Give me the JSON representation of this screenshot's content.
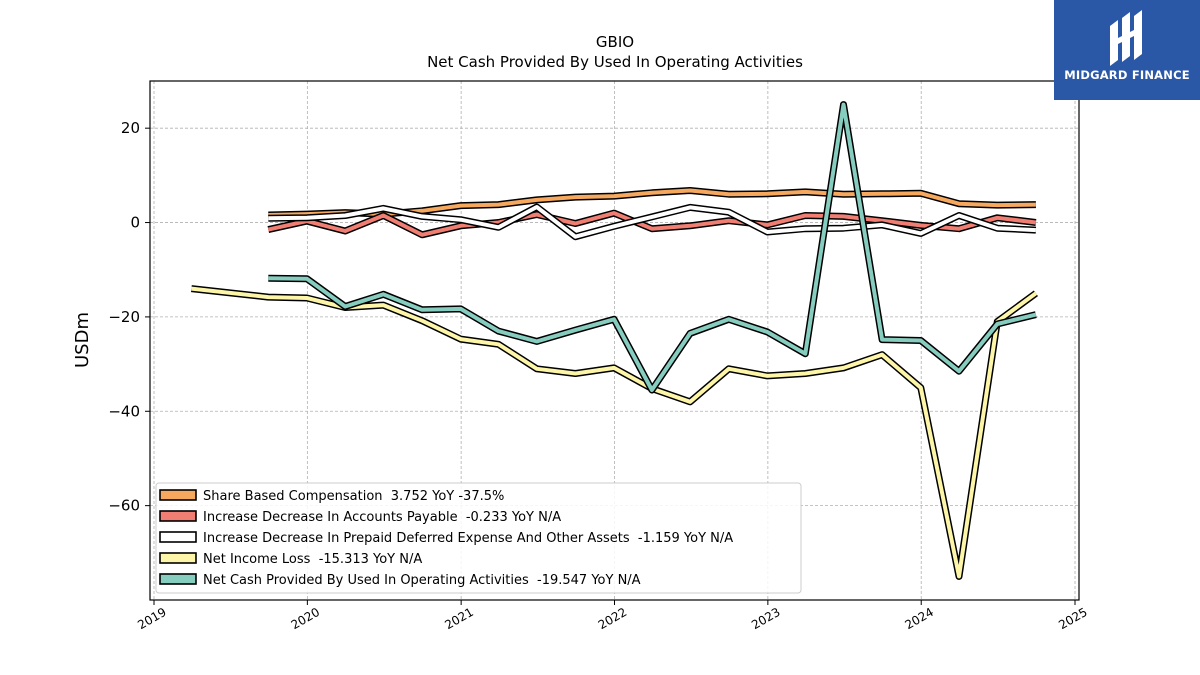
{
  "header": {
    "ticker": "GBIO",
    "subtitle": "Net Cash Provided By Used In Operating Activities"
  },
  "logo": {
    "text": "MIDGARD FINANCE",
    "bg_color": "#2b57a7"
  },
  "chart_data": {
    "type": "line",
    "title": "GBIO",
    "subtitle": "Net Cash Provided By Used In Operating Activities",
    "ylabel": "USDm",
    "xlabel": "",
    "x_is_date": true,
    "xlim": [
      "2019-01-01",
      "2025-01-01"
    ],
    "ylim": [
      -80,
      30
    ],
    "x_ticks": [
      "2019",
      "2020",
      "2021",
      "2022",
      "2023",
      "2024",
      "2025"
    ],
    "y_ticks": [
      -60,
      -40,
      -20,
      0,
      20
    ],
    "y_tick_labels": [
      "−60",
      "−40",
      "−20",
      "0",
      "20"
    ],
    "grid": true,
    "legend_position": "lower-left",
    "series": [
      {
        "name": "Share Based Compensation",
        "legend_label": "Share Based Compensation  3.752 YoY -37.5%",
        "color": "#f6a85e",
        "x": [
          "2019-09-30",
          "2019-12-31",
          "2020-03-31",
          "2020-06-30",
          "2020-09-30",
          "2020-12-31",
          "2021-03-31",
          "2021-06-30",
          "2021-09-30",
          "2021-12-31",
          "2022-03-31",
          "2022-06-30",
          "2022-09-30",
          "2022-12-31",
          "2023-03-31",
          "2023-06-30",
          "2023-09-30",
          "2023-12-31",
          "2024-03-31",
          "2024-06-30",
          "2024-09-30"
        ],
        "y": [
          1.6,
          1.8,
          2.1,
          1.8,
          2.5,
          3.6,
          3.8,
          4.8,
          5.4,
          5.6,
          6.3,
          6.8,
          6.0,
          6.1,
          6.5,
          6.0,
          6.1,
          6.2,
          4.0,
          3.7,
          3.8
        ]
      },
      {
        "name": "Increase Decrease In Accounts Payable",
        "legend_label": "Increase Decrease In Accounts Payable  -0.233 YoY N/A",
        "color": "#f07e72",
        "x": [
          "2019-09-30",
          "2019-12-31",
          "2020-03-31",
          "2020-06-30",
          "2020-09-30",
          "2020-12-31",
          "2021-03-31",
          "2021-06-30",
          "2021-09-30",
          "2021-12-31",
          "2022-03-31",
          "2022-06-30",
          "2022-09-30",
          "2022-12-31",
          "2023-03-31",
          "2023-06-30",
          "2023-09-30",
          "2023-12-31",
          "2024-03-31",
          "2024-06-30",
          "2024-09-30"
        ],
        "y": [
          -1.5,
          0.3,
          -1.8,
          1.5,
          -2.6,
          -0.7,
          0.0,
          1.7,
          -0.2,
          2.0,
          -1.3,
          -0.7,
          0.4,
          -0.5,
          1.5,
          1.3,
          0.4,
          -0.6,
          -1.3,
          1.0,
          0.0
        ]
      },
      {
        "name": "Increase Decrease In Prepaid Deferred Expense And Other Assets",
        "legend_label": "Increase Decrease In Prepaid Deferred Expense And Other Assets  -1.159 YoY N/A",
        "color": "#ffffff",
        "x": [
          "2019-09-30",
          "2019-12-31",
          "2020-03-31",
          "2020-06-30",
          "2020-09-30",
          "2020-12-31",
          "2021-03-31",
          "2021-06-30",
          "2021-09-30",
          "2021-12-31",
          "2022-03-31",
          "2022-06-30",
          "2022-09-30",
          "2022-12-31",
          "2023-03-31",
          "2023-06-30",
          "2023-09-30",
          "2023-12-31",
          "2024-03-31",
          "2024-06-30",
          "2024-09-30"
        ],
        "y": [
          0.9,
          1.0,
          1.5,
          3.0,
          1.3,
          0.6,
          -1.0,
          3.3,
          -3.0,
          -0.8,
          1.2,
          3.2,
          2.2,
          -2.0,
          -1.3,
          -1.2,
          -0.5,
          -2.3,
          1.5,
          -1.2,
          -1.6
        ]
      },
      {
        "name": "Net Income Loss",
        "legend_label": "Net Income Loss  -15.313 YoY N/A",
        "color": "#fdf6a8",
        "x": [
          "2019-03-31",
          "2019-09-30",
          "2019-12-31",
          "2020-03-31",
          "2020-06-30",
          "2020-09-30",
          "2020-12-31",
          "2021-03-31",
          "2021-06-30",
          "2021-09-30",
          "2021-12-31",
          "2022-03-31",
          "2022-06-30",
          "2022-09-30",
          "2022-12-31",
          "2023-03-31",
          "2023-06-30",
          "2023-09-30",
          "2023-12-31",
          "2024-03-31",
          "2024-06-30",
          "2024-09-30"
        ],
        "y": [
          -14.0,
          -15.8,
          -16.0,
          -18.0,
          -17.5,
          -20.8,
          -24.7,
          -25.8,
          -31.0,
          -32.0,
          -30.8,
          -35.2,
          -38.0,
          -31.0,
          -32.5,
          -32.0,
          -30.8,
          -28.0,
          -35.0,
          -75.0,
          -21.0,
          -15.0
        ]
      },
      {
        "name": "Net Cash Provided By Used In Operating Activities",
        "legend_label": "Net Cash Provided By Used In Operating Activities  -19.547 YoY N/A",
        "color": "#86cdc0",
        "x": [
          "2019-09-30",
          "2019-12-31",
          "2020-03-31",
          "2020-06-30",
          "2020-09-30",
          "2020-12-31",
          "2021-03-31",
          "2021-06-30",
          "2021-09-30",
          "2021-12-31",
          "2022-03-31",
          "2022-06-30",
          "2022-09-30",
          "2022-12-31",
          "2023-03-31",
          "2023-06-30",
          "2023-09-30",
          "2023-12-31",
          "2024-03-31",
          "2024-06-30",
          "2024-09-30"
        ],
        "y": [
          -11.8,
          -11.9,
          -17.8,
          -15.2,
          -18.5,
          -18.3,
          -23.0,
          -25.2,
          -22.8,
          -20.5,
          -35.5,
          -23.5,
          -20.5,
          -23.2,
          -27.8,
          25.0,
          -24.8,
          -25.0,
          -31.5,
          -21.5,
          -19.5
        ]
      }
    ]
  }
}
